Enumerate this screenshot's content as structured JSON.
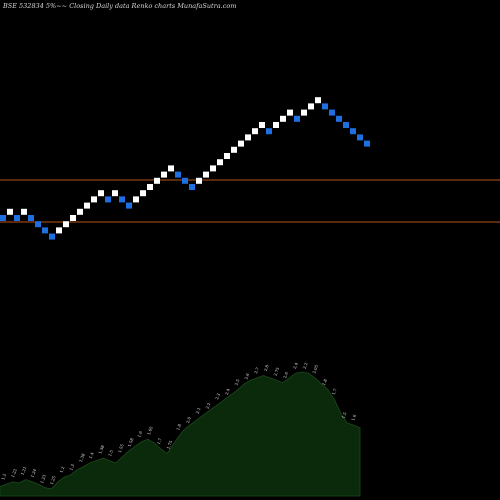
{
  "chart_data": {
    "type": "renko",
    "title": "BSE 532834  5%~~  Closing Daily data  Renko  charts MunafaSutra.com",
    "colors": {
      "background": "#000000",
      "up_brick": "#ffffff",
      "down_brick": "#1e6fe0",
      "horizontal_line": "#b3541e",
      "volume_fill": "#0b2a0b",
      "volume_line": "#1a4a1a"
    },
    "horizontal_levels": [
      {
        "value": "upper"
      },
      {
        "value": "lower"
      }
    ],
    "bricks": [
      {
        "dir": "down",
        "level": 0
      },
      {
        "dir": "up",
        "level": 1
      },
      {
        "dir": "down",
        "level": 0
      },
      {
        "dir": "up",
        "level": 1
      },
      {
        "dir": "down",
        "level": 0
      },
      {
        "dir": "down",
        "level": -1
      },
      {
        "dir": "down",
        "level": -2
      },
      {
        "dir": "down",
        "level": -3
      },
      {
        "dir": "up",
        "level": -2
      },
      {
        "dir": "up",
        "level": -1
      },
      {
        "dir": "up",
        "level": 0
      },
      {
        "dir": "up",
        "level": 1
      },
      {
        "dir": "up",
        "level": 2
      },
      {
        "dir": "up",
        "level": 3
      },
      {
        "dir": "up",
        "level": 4
      },
      {
        "dir": "down",
        "level": 3
      },
      {
        "dir": "up",
        "level": 4
      },
      {
        "dir": "down",
        "level": 3
      },
      {
        "dir": "down",
        "level": 2
      },
      {
        "dir": "up",
        "level": 3
      },
      {
        "dir": "up",
        "level": 4
      },
      {
        "dir": "up",
        "level": 5
      },
      {
        "dir": "up",
        "level": 6
      },
      {
        "dir": "up",
        "level": 7
      },
      {
        "dir": "up",
        "level": 8
      },
      {
        "dir": "down",
        "level": 7
      },
      {
        "dir": "down",
        "level": 6
      },
      {
        "dir": "down",
        "level": 5
      },
      {
        "dir": "up",
        "level": 6
      },
      {
        "dir": "up",
        "level": 7
      },
      {
        "dir": "up",
        "level": 8
      },
      {
        "dir": "up",
        "level": 9
      },
      {
        "dir": "up",
        "level": 10
      },
      {
        "dir": "up",
        "level": 11
      },
      {
        "dir": "up",
        "level": 12
      },
      {
        "dir": "up",
        "level": 13
      },
      {
        "dir": "up",
        "level": 14
      },
      {
        "dir": "up",
        "level": 15
      },
      {
        "dir": "down",
        "level": 14
      },
      {
        "dir": "up",
        "level": 15
      },
      {
        "dir": "up",
        "level": 16
      },
      {
        "dir": "up",
        "level": 17
      },
      {
        "dir": "down",
        "level": 16
      },
      {
        "dir": "up",
        "level": 17
      },
      {
        "dir": "up",
        "level": 18
      },
      {
        "dir": "up",
        "level": 19
      },
      {
        "dir": "down",
        "level": 18
      },
      {
        "dir": "down",
        "level": 17
      },
      {
        "dir": "down",
        "level": 16
      },
      {
        "dir": "down",
        "level": 15
      },
      {
        "dir": "down",
        "level": 14
      },
      {
        "dir": "down",
        "level": 13
      },
      {
        "dir": "down",
        "level": 12
      }
    ],
    "volume_labels": [
      "1.2",
      "1.22",
      "1.21",
      "1.24",
      "1.23",
      "1.25",
      "1.2",
      "1.3",
      "1.38",
      "1.4",
      "1.38",
      "1.5",
      "1.55",
      "1.58",
      "1.6",
      "1.65",
      "1.7",
      "1.75",
      "1.8",
      "2.0",
      "2.1",
      "2.2",
      "2.3",
      "2.4",
      "2.5",
      "2.6",
      "2.7",
      "2.8",
      "2.75",
      "2.6",
      "2.4",
      "2.2",
      "2.05",
      "1.8",
      "1.7",
      "1.5",
      "1.6"
    ],
    "volume": [
      8,
      10,
      12,
      11,
      14,
      12,
      10,
      7,
      6,
      12,
      16,
      18,
      22,
      25,
      28,
      30,
      32,
      30,
      28,
      33,
      38,
      42,
      46,
      48,
      45,
      40,
      36,
      44,
      52,
      58,
      62,
      66,
      70,
      74,
      78,
      82,
      86,
      90,
      95,
      98,
      100,
      102,
      100,
      98,
      96,
      100,
      104,
      105,
      104,
      100,
      95,
      90,
      82,
      70,
      62,
      60,
      58
    ]
  }
}
